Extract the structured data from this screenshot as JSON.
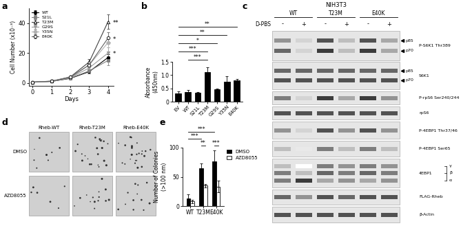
{
  "chart_data": [
    {
      "panel_label": "a",
      "type": "line",
      "x": [
        0,
        1,
        2,
        3,
        4
      ],
      "xlim": [
        -0.2,
        4.3
      ],
      "xticks": [
        0,
        1,
        2,
        3,
        4
      ],
      "ylim": [
        -2,
        50
      ],
      "yticks": [
        0,
        20,
        40
      ],
      "x_label": "Days",
      "y_label": "Cell Number (x10⁻³)",
      "legend": "upper left",
      "series": [
        {
          "name": "WT",
          "color": "#000000",
          "marker": "circle",
          "values": [
            0.5,
            1.0,
            3.0,
            7.5,
            17
          ],
          "errors": [
            0.1,
            0.2,
            0.5,
            1.0,
            2
          ]
        },
        {
          "name": "S21L",
          "color": "#7f7f7f",
          "marker": "square",
          "values": [
            0.5,
            1.0,
            3.2,
            8.0,
            15
          ],
          "errors": [
            0.1,
            0.2,
            0.5,
            1.5,
            3
          ]
        },
        {
          "name": "T23M",
          "color": "#404040",
          "marker": "triangle_open",
          "values": [
            0.5,
            1.2,
            4.0,
            14,
            41
          ],
          "errors": [
            0.1,
            0.2,
            0.6,
            2,
            5
          ],
          "significance": "**"
        },
        {
          "name": "G29S",
          "color": "#9a9a9a",
          "marker": "triangle_down",
          "values": [
            0.5,
            1.0,
            3.5,
            10,
            20
          ],
          "errors": [
            0.1,
            0.2,
            0.5,
            1.5,
            4
          ],
          "significance": "*"
        },
        {
          "name": "Y35N",
          "color": "#b0b0b0",
          "marker": "diamond",
          "values": [
            0.5,
            1.1,
            3.8,
            12,
            27
          ],
          "errors": [
            0.1,
            0.2,
            0.5,
            1.5,
            3
          ]
        },
        {
          "name": "E40K",
          "color": "#606060",
          "marker": "circle_open",
          "values": [
            0.5,
            1.1,
            3.8,
            12,
            30
          ],
          "errors": [
            0.1,
            0.2,
            0.5,
            1.5,
            4
          ],
          "significance": "*"
        }
      ]
    },
    {
      "panel_label": "b",
      "type": "bar",
      "categories": [
        "EV",
        "WT",
        "S21L",
        "T23M",
        "G29S",
        "Y35N",
        "E40K"
      ],
      "values": [
        0.3,
        0.37,
        0.33,
        1.12,
        0.46,
        0.75,
        0.8
      ],
      "errors": [
        0.08,
        0.06,
        0.04,
        0.18,
        0.02,
        0.2,
        0.05
      ],
      "color": "#000000",
      "ylim": [
        0,
        1.5
      ],
      "yticks": [
        0,
        0.5,
        {
          "value": 1,
          "label": "1.0"
        },
        1.5
      ],
      "y_label": "Absorbance\n(450nm)",
      "comparisons": [
        {
          "from": "WT",
          "to": "T23M",
          "label": "***"
        },
        {
          "from": "EV",
          "to": "T23M",
          "label": "***"
        },
        {
          "from": "EV",
          "to": "G29S",
          "label": "*"
        },
        {
          "from": "EV",
          "to": "Y35N",
          "label": "**"
        },
        {
          "from": "EV",
          "to": "E40K",
          "label": "**"
        }
      ]
    },
    {
      "panel_label": "e",
      "type": "bar",
      "categories": [
        "WT",
        "T23M",
        "E40K"
      ],
      "series": [
        {
          "name": "DMSO",
          "color": "#000000",
          "values": [
            13,
            65,
            77
          ],
          "errors": [
            7,
            8,
            18
          ]
        },
        {
          "name": "AZD8055",
          "color": "#ffffff",
          "values": [
            8,
            35,
            33
          ],
          "errors": [
            3,
            3,
            10
          ]
        }
      ],
      "ylim": [
        0,
        100
      ],
      "yticks": [
        0,
        50,
        100
      ],
      "y_label": "Number of Colonies\n(>100 nm)",
      "legend": "right",
      "comparisons": [
        {
          "from": [
            "T23M",
            "DMSO"
          ],
          "to": [
            "T23M",
            "AZD8055"
          ],
          "label": "**"
        },
        {
          "from": [
            "E40K",
            "DMSO"
          ],
          "to": [
            "E40K",
            "AZD8055"
          ],
          "label": "***"
        },
        {
          "from": [
            "WT",
            "DMSO"
          ],
          "to": [
            "T23M",
            "DMSO"
          ],
          "label": "***"
        },
        {
          "from": [
            "WT",
            "DMSO"
          ],
          "to": [
            "E40K",
            "DMSO"
          ],
          "label": "***"
        }
      ]
    }
  ],
  "blot": {
    "panel_label": "c",
    "cell_line": "NIH3T3",
    "groups": [
      "WT",
      "T23M",
      "E40K"
    ],
    "treatment": "D-PBS",
    "lane_signs": [
      "-",
      "+",
      "-",
      "+",
      "-",
      "+"
    ],
    "rows": [
      {
        "label": "P-S6K1 Thr389",
        "band_labels": [
          "p85",
          "p70"
        ]
      },
      {
        "label": "S6K1",
        "band_labels": [
          "p85",
          "p70"
        ]
      },
      {
        "label": "P-rpS6 Ser240/244"
      },
      {
        "label": "rpS6"
      },
      {
        "label": "P-4EBP1 Thr37/46"
      },
      {
        "label": "P-4EBP1 Ser65"
      },
      {
        "label": "4EBP1",
        "band_labels": [
          "γ",
          "β",
          "α"
        ]
      },
      {
        "label": "FLAG-Rheb"
      },
      {
        "label": "β-Actin"
      }
    ]
  },
  "colony_images": {
    "panel_label": "d",
    "columns": [
      "Rheb-WT",
      "Rheb-T23M",
      "Rheb-E40K"
    ],
    "rows": [
      "DMSO",
      "AZD8055"
    ]
  }
}
